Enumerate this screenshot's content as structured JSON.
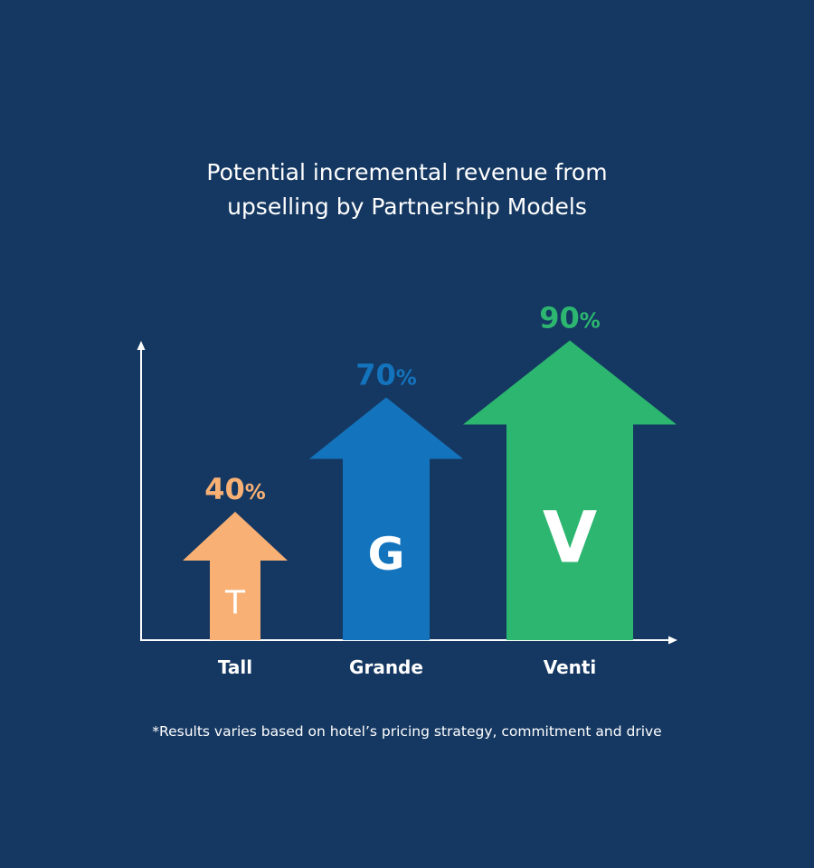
{
  "title_lines": [
    "Potential incremental revenue from",
    "upselling by Partnership Models"
  ],
  "footnote": "*Results varies based on hotel’s pricing strategy, commitment and drive",
  "colors": {
    "background": "#153862",
    "axis": "#ffffff",
    "tall": "#F9B074",
    "grande": "#1374BD",
    "venti": "#2CB670"
  },
  "chart_data": {
    "type": "bar",
    "title": "Potential incremental revenue from upselling by Partnership Models",
    "categories": [
      "Tall",
      "Grande",
      "Venti"
    ],
    "values": [
      40,
      70,
      90
    ],
    "value_labels": [
      "40%",
      "70%",
      "90%"
    ],
    "value_suffix": "%",
    "arrow_letters": [
      "T",
      "G",
      "V"
    ],
    "bar_colors": [
      "#F9B074",
      "#1374BD",
      "#2CB670"
    ],
    "xlabel": "",
    "ylabel": "",
    "ylim": [
      0,
      100
    ],
    "grid": false,
    "legend": "none"
  }
}
